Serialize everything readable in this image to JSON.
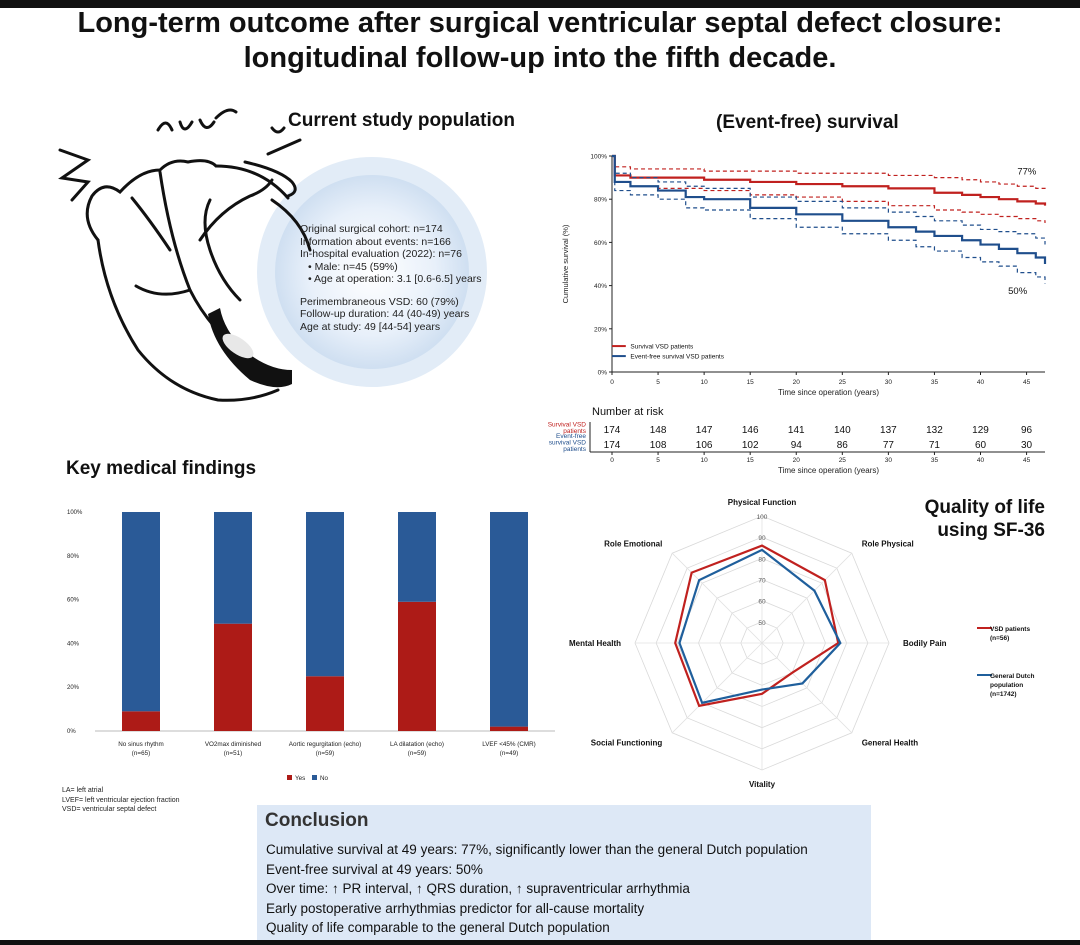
{
  "title": {
    "line1": "Long-term outcome after surgical ventricular septal defect closure:",
    "line2": "longitudinal follow-up into the fifth decade."
  },
  "study_population": {
    "heading": "Current study population",
    "lines": [
      "Original surgical cohort: n=174",
      "Information about events: n=166",
      "In-hospital evaluation (2022): n=76",
      "• Male: n=45 (59%)",
      "• Age at operation: 3.1 [0.6-6.5] years",
      "Perimembraneous VSD: 60 (79%)",
      "Follow-up duration: 44 (40-49) years",
      "Age at study: 49 [44-54] years"
    ]
  },
  "survival": {
    "heading": "(Event-free) survival",
    "label_top": "77%",
    "label_bottom": "50%",
    "ylabel": "Cumulative survival (%)",
    "xlabel": "Time since operation (years)",
    "legend": [
      "Survival VSD patients",
      "Event-free survival VSD patients"
    ],
    "risk_title": "Number at risk",
    "risk_row1_label": [
      "Survival VSD",
      "patients"
    ],
    "risk_row2_label": [
      "Event-free",
      "survival VSD",
      "patients"
    ],
    "risk_row1": [
      "174",
      "148",
      "147",
      "146",
      "141",
      "140",
      "137",
      "132",
      "129",
      "96"
    ],
    "risk_row2": [
      "174",
      "108",
      "106",
      "102",
      "94",
      "86",
      "77",
      "71",
      "60",
      "30"
    ],
    "risk_xlabel": "Time since operation (years)"
  },
  "key_findings": {
    "heading": "Key medical findings",
    "legend_yes": "Yes",
    "legend_no": "No"
  },
  "qol": {
    "heading_line1": "Quality of life",
    "heading_line2": "using SF-36",
    "legend1": [
      "VSD patients",
      "(n=56)"
    ],
    "legend2": [
      "General Dutch",
      "population",
      "(n=1742)"
    ]
  },
  "abbreviations": [
    "LA= left atrial",
    "LVEF= left ventricular ejection fraction",
    "VSD= ventricular septal defect"
  ],
  "conclusion": {
    "heading": "Conclusion",
    "items": [
      "Cumulative survival at 49 years: 77%, significantly lower than the general Dutch population",
      "Event-free survival at 49 years: 50%",
      "Over time: ↑ PR interval, ↑ QRS duration, ↑ supraventricular arrhythmia",
      "Early postoperative arrhythmias predictor for all-cause mortality",
      "Quality of life comparable to the general Dutch population"
    ]
  },
  "colors": {
    "red": "#c0211f",
    "blue": "#1f4e8c",
    "bar_blue": "#2a5a97",
    "bar_red": "#ad1b17"
  },
  "chart_data": [
    {
      "type": "line",
      "title": "(Event-free) survival",
      "xlabel": "Time since operation (years)",
      "ylabel": "Cumulative survival (%)",
      "xlim": [
        0,
        47
      ],
      "ylim": [
        0,
        100
      ],
      "xticks": [
        0,
        5,
        10,
        15,
        20,
        25,
        30,
        35,
        40,
        45
      ],
      "yticks": [
        "0%",
        "20%",
        "40%",
        "60%",
        "80%",
        "100%"
      ],
      "series": [
        {
          "name": "Survival VSD patients",
          "color": "#c0211f",
          "x": [
            0,
            0.3,
            2,
            5,
            10,
            15,
            20,
            25,
            30,
            35,
            38,
            40,
            42,
            44,
            46,
            47
          ],
          "y": [
            100,
            91,
            90,
            90,
            89,
            88,
            87,
            86,
            85,
            83,
            82,
            81,
            80,
            79,
            78,
            77
          ],
          "lower": [
            100,
            88,
            86,
            85,
            84,
            82,
            81,
            79,
            77,
            75,
            74,
            73,
            72,
            71,
            70,
            69
          ],
          "upper": [
            100,
            95,
            94,
            94,
            93,
            93,
            92,
            92,
            91,
            90,
            89,
            88,
            87,
            86,
            85,
            84
          ]
        },
        {
          "name": "Event-free survival VSD patients",
          "color": "#1f4e8c",
          "x": [
            0,
            0.3,
            2,
            5,
            8,
            10,
            15,
            20,
            25,
            30,
            33,
            35,
            38,
            40,
            42,
            44,
            46,
            47
          ],
          "y": [
            100,
            88,
            86,
            84,
            81,
            80,
            76,
            73,
            70,
            67,
            65,
            63,
            61,
            59,
            57,
            55,
            53,
            50
          ],
          "lower": [
            100,
            84,
            82,
            80,
            76,
            75,
            71,
            67,
            64,
            61,
            58,
            56,
            53,
            51,
            49,
            46,
            44,
            41
          ],
          "upper": [
            100,
            92,
            90,
            88,
            86,
            85,
            81,
            79,
            76,
            74,
            72,
            70,
            68,
            66,
            65,
            64,
            62,
            59
          ]
        }
      ],
      "annotations": [
        "77%",
        "50%"
      ]
    },
    {
      "type": "bar",
      "stacked": true,
      "title": "Key medical findings",
      "categories": [
        "No sinus rhythm",
        "VO2max diminished",
        "Aortic regurgitation (echo)",
        "LA dilatation (echo)",
        "LVEF <45% (CMR)"
      ],
      "category_n": [
        "(n=65)",
        "(n=51)",
        "(n=59)",
        "(n=59)",
        "(n=49)"
      ],
      "series": [
        {
          "name": "Yes",
          "color": "#ad1b17",
          "values": [
            9,
            49,
            25,
            59,
            2
          ]
        },
        {
          "name": "No",
          "color": "#2a5a97",
          "values": [
            91,
            51,
            75,
            41,
            98
          ]
        }
      ],
      "yticks": [
        "0%",
        "20%",
        "40%",
        "60%",
        "80%",
        "100%"
      ],
      "ylim": [
        0,
        100
      ]
    },
    {
      "type": "radar",
      "title": "Quality of life using SF-36",
      "axes": [
        "Physical Function",
        "Role Physical",
        "Bodily Pain",
        "General Health",
        "Vitality",
        "Social Functioning",
        "Mental Health",
        "Role Emotional"
      ],
      "rlim": [
        40,
        100
      ],
      "rticks": [
        50,
        60,
        70,
        80,
        90,
        100
      ],
      "series": [
        {
          "name": "VSD patients (n=56)",
          "color": "#c0211f",
          "values": [
            86,
            82,
            76,
            60,
            64,
            82,
            81,
            87
          ]
        },
        {
          "name": "General Dutch population (n=1742)",
          "color": "#1f5f9c",
          "values": [
            84,
            75,
            77,
            67,
            62,
            80,
            79,
            82
          ]
        }
      ]
    }
  ]
}
